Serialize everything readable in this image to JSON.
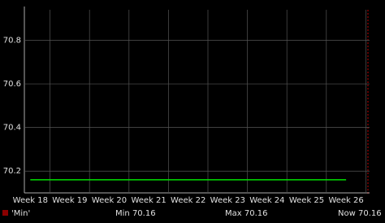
{
  "chart_data": {
    "type": "line",
    "categories": [
      "Week 18",
      "Week 19",
      "Week 20",
      "Week 21",
      "Week 22",
      "Week 23",
      "Week 24",
      "Week 25",
      "Week 26"
    ],
    "series": [
      {
        "name": "'Min'",
        "color": "#00e000",
        "legend_color": "#8b0000",
        "values": [
          70.16,
          70.16,
          70.16,
          70.16,
          70.16,
          70.16,
          70.16,
          70.16,
          70.16
        ]
      }
    ],
    "ylim": [
      70.1,
      70.94
    ],
    "yticks": [
      70.2,
      70.4,
      70.6,
      70.8
    ],
    "grid": true,
    "stats": [
      {
        "label": "Min",
        "value": 70.16
      },
      {
        "label": "Max",
        "value": 70.16
      },
      {
        "label": "Now",
        "value": 70.16
      }
    ]
  }
}
